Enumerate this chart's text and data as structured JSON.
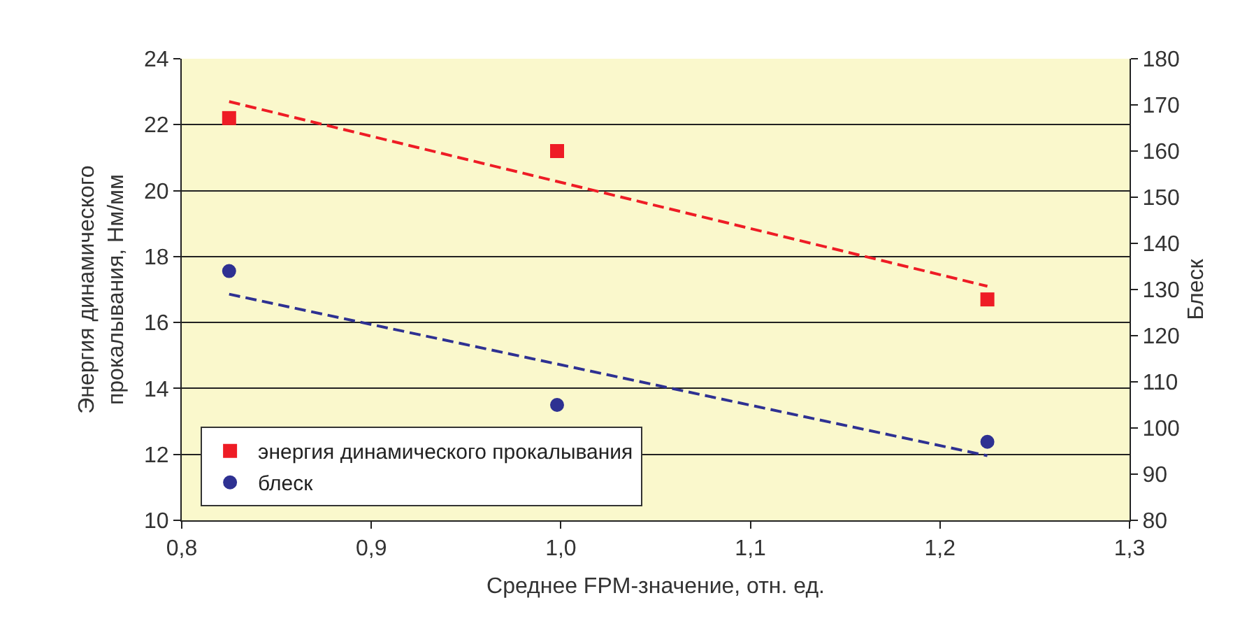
{
  "chart_data": {
    "type": "scatter",
    "xlabel": "Среднее FPM-значение, отн. ед.",
    "ylabel": "Энергия динамического прокалывания, Нм/мм",
    "y2label": "Блеск",
    "series": [
      {
        "name": "энергия динамического прокалывания",
        "color": "#ee1c25",
        "marker": "square",
        "x": [
          0.825,
          0.998,
          1.225
        ],
        "values": [
          22.2,
          21.2,
          16.7
        ]
      },
      {
        "name": "блеск",
        "axis": "y2",
        "color": "#2e3192",
        "marker": "circle",
        "x": [
          0.825,
          0.998,
          1.225
        ],
        "values": [
          134,
          105,
          97
        ]
      },
      {
        "type": "line",
        "color": "#ee1c25",
        "line_style": "dashed",
        "marker": "none",
        "x": [
          0.825,
          1.225
        ],
        "values": [
          22.7,
          17.1
        ]
      },
      {
        "type": "line",
        "axis": "y2",
        "color": "#2e3192",
        "line_style": "dashed",
        "marker": "none",
        "x": [
          0.825,
          1.225
        ],
        "values": [
          129,
          94
        ]
      }
    ],
    "xlim": [
      0.8,
      1.3
    ],
    "xticks": [
      {
        "value": 0.8,
        "label": "0,8"
      },
      {
        "value": 0.9,
        "label": "0,9"
      },
      {
        "value": 1.0,
        "label": "1,0"
      },
      {
        "value": 1.1,
        "label": "1,1"
      },
      {
        "value": 1.2,
        "label": "1,2"
      },
      {
        "value": 1.3,
        "label": "1,3"
      }
    ],
    "ylim": [
      10,
      24
    ],
    "yticks": [
      10,
      12,
      14,
      16,
      18,
      20,
      22,
      24
    ],
    "y2lim": [
      80,
      180
    ],
    "y2ticks": [
      80,
      90,
      100,
      110,
      120,
      130,
      140,
      150,
      160,
      170,
      180
    ],
    "grid": "y",
    "legend": "bottom left"
  }
}
